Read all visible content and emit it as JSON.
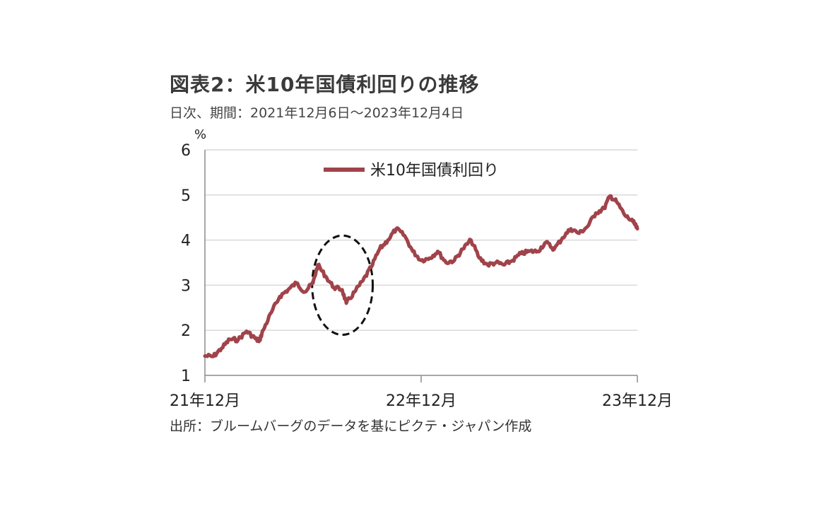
{
  "title": "図表2：米10年国債利回りの推移",
  "subtitle": "日次、期間：2021年12月6日～2023年12月4日",
  "source": "出所：ブルームバーグのデータを基にピクテ・ジャパン作成",
  "chart_data": {
    "type": "line",
    "ylabel": "%",
    "ylim": [
      1,
      6
    ],
    "yticks": [
      "1",
      "2",
      "3",
      "4",
      "5",
      "6"
    ],
    "xticks": [
      "21年12月",
      "22年12月",
      "23年12月"
    ],
    "grid": true,
    "legend_position": "top-center",
    "series_color": "#a0434a",
    "series": [
      {
        "name": "米10年国債利回り",
        "points": [
          [
            "2021-12-06",
            1.43
          ],
          [
            "2021-12-20",
            1.42
          ],
          [
            "2022-01-03",
            1.6
          ],
          [
            "2022-01-17",
            1.8
          ],
          [
            "2022-01-31",
            1.79
          ],
          [
            "2022-02-14",
            1.98
          ],
          [
            "2022-02-28",
            1.83
          ],
          [
            "2022-03-07",
            1.75
          ],
          [
            "2022-03-14",
            2.0
          ],
          [
            "2022-03-28",
            2.4
          ],
          [
            "2022-04-11",
            2.75
          ],
          [
            "2022-04-25",
            2.9
          ],
          [
            "2022-05-09",
            3.05
          ],
          [
            "2022-05-23",
            2.85
          ],
          [
            "2022-06-06",
            3.05
          ],
          [
            "2022-06-14",
            3.45
          ],
          [
            "2022-06-27",
            3.2
          ],
          [
            "2022-07-11",
            2.95
          ],
          [
            "2022-07-25",
            2.9
          ],
          [
            "2022-08-01",
            2.6
          ],
          [
            "2022-08-15",
            2.85
          ],
          [
            "2022-08-29",
            3.1
          ],
          [
            "2022-09-12",
            3.4
          ],
          [
            "2022-09-26",
            3.8
          ],
          [
            "2022-10-10",
            4.0
          ],
          [
            "2022-10-24",
            4.25
          ],
          [
            "2022-11-07",
            4.1
          ],
          [
            "2022-11-21",
            3.75
          ],
          [
            "2022-12-05",
            3.55
          ],
          [
            "2022-12-19",
            3.6
          ],
          [
            "2023-01-02",
            3.75
          ],
          [
            "2023-01-16",
            3.5
          ],
          [
            "2023-01-30",
            3.55
          ],
          [
            "2023-02-13",
            3.8
          ],
          [
            "2023-02-27",
            4.0
          ],
          [
            "2023-03-13",
            3.6
          ],
          [
            "2023-03-27",
            3.45
          ],
          [
            "2023-04-10",
            3.5
          ],
          [
            "2023-04-24",
            3.45
          ],
          [
            "2023-05-08",
            3.55
          ],
          [
            "2023-05-22",
            3.7
          ],
          [
            "2023-06-05",
            3.75
          ],
          [
            "2023-06-19",
            3.75
          ],
          [
            "2023-07-03",
            3.95
          ],
          [
            "2023-07-17",
            3.8
          ],
          [
            "2023-07-31",
            4.05
          ],
          [
            "2023-08-14",
            4.25
          ],
          [
            "2023-08-28",
            4.15
          ],
          [
            "2023-09-11",
            4.3
          ],
          [
            "2023-09-25",
            4.6
          ],
          [
            "2023-10-09",
            4.7
          ],
          [
            "2023-10-19",
            4.98
          ],
          [
            "2023-10-30",
            4.85
          ],
          [
            "2023-11-13",
            4.55
          ],
          [
            "2023-11-27",
            4.4
          ],
          [
            "2023-12-04",
            4.25
          ]
        ]
      }
    ]
  }
}
